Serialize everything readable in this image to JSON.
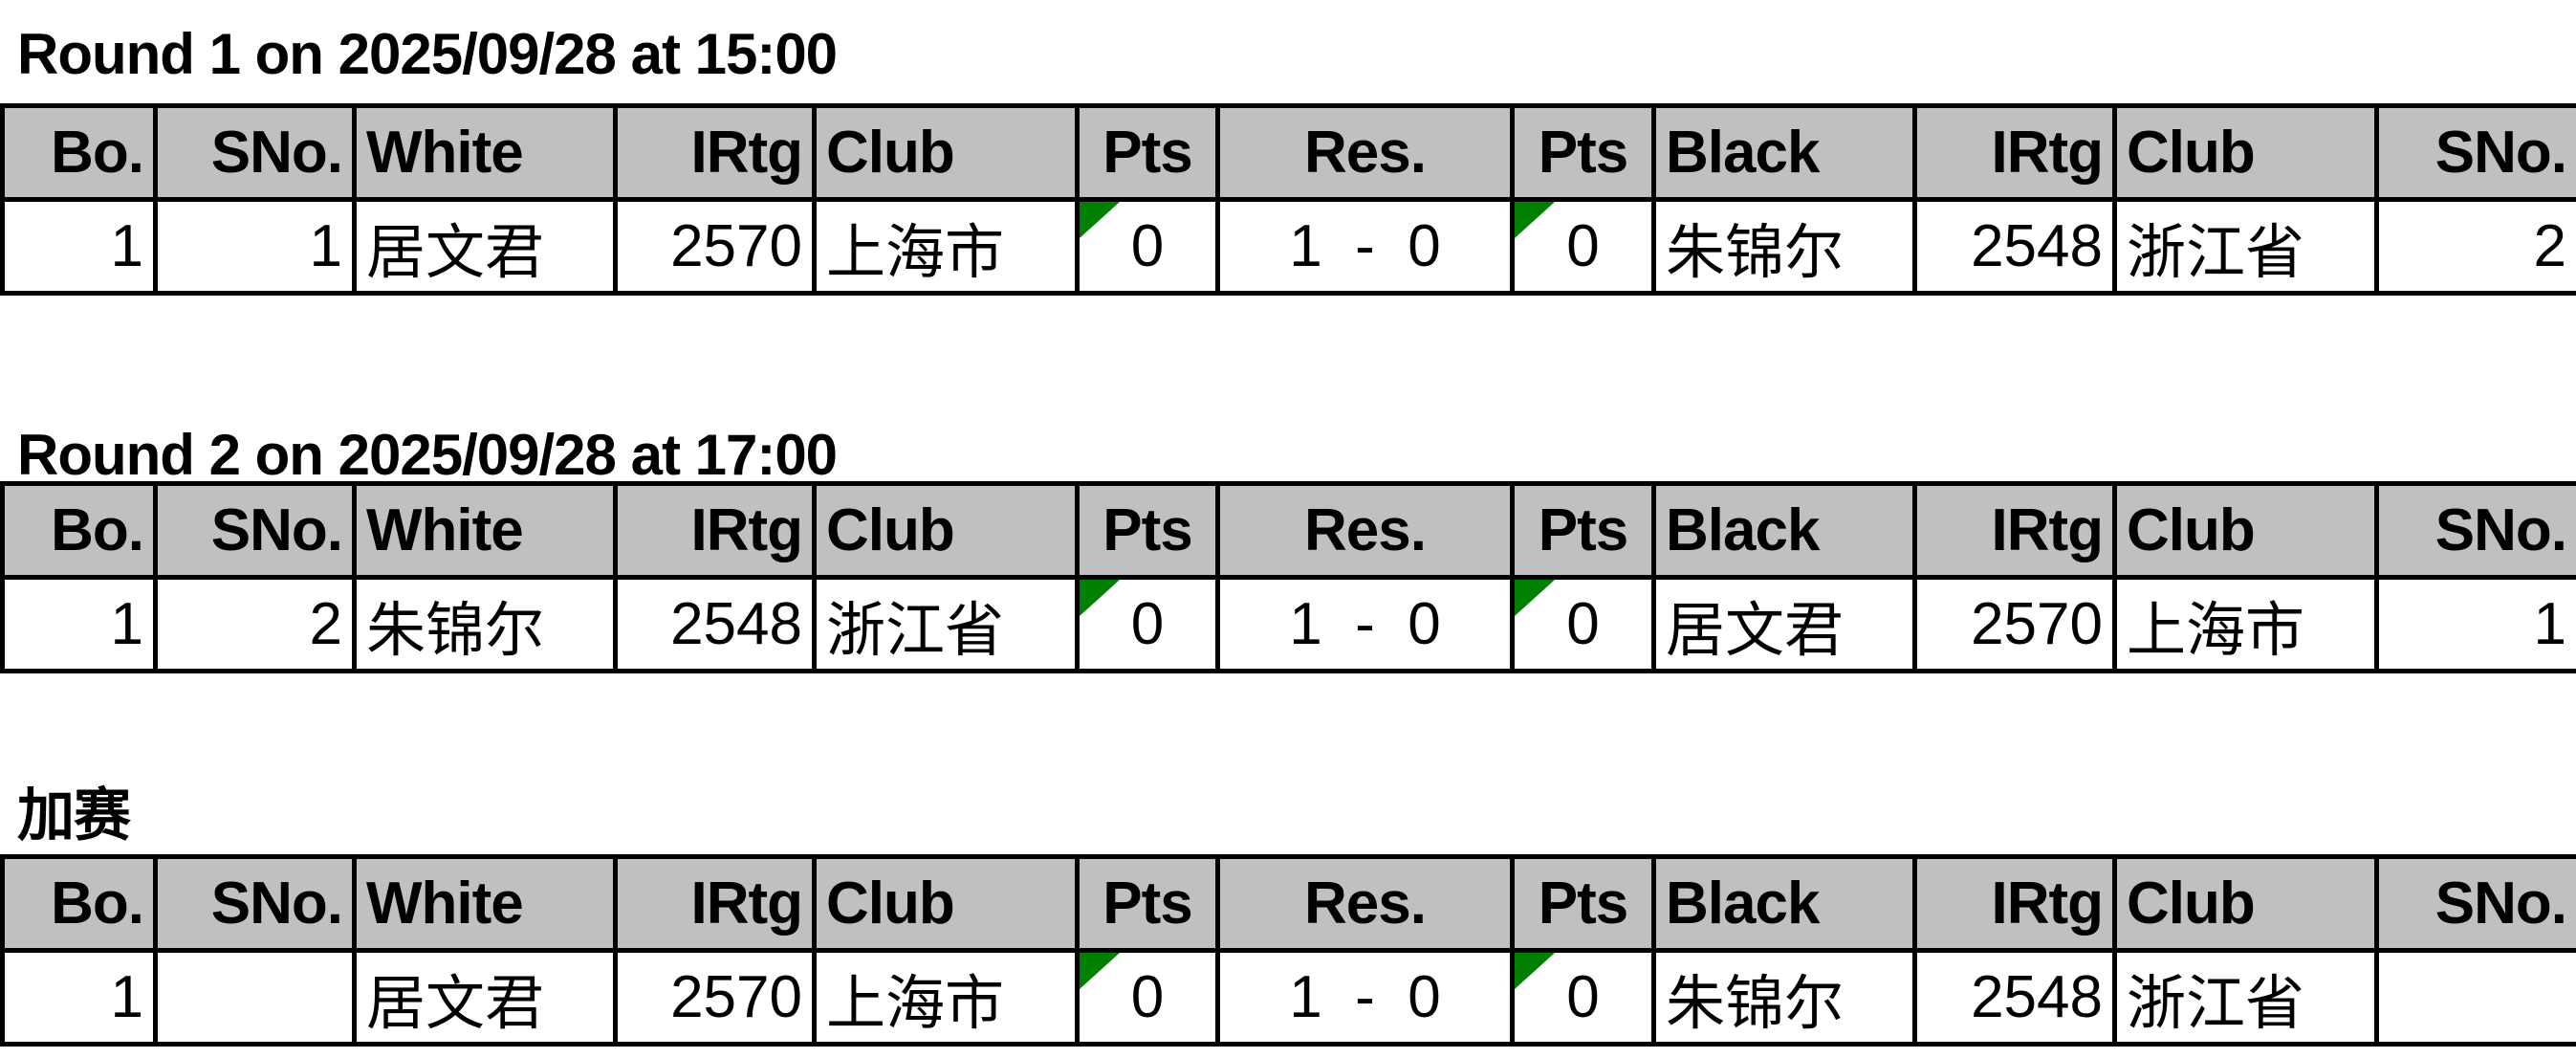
{
  "headers": [
    "Bo.",
    "SNo.",
    "White",
    "IRtg",
    "Club",
    "Pts",
    "Res.",
    "Pts",
    "Black",
    "IRtg",
    "Club",
    "SNo."
  ],
  "marker_color": "#008000",
  "header_bg": "#c0c0c0",
  "rounds": [
    {
      "title": "Round 1 on 2025/09/28 at 15:00",
      "rows": [
        {
          "board": "1",
          "white_sno": "1",
          "white": "居文君",
          "white_rtg": "2570",
          "white_club": "上海市",
          "white_pts": "0",
          "result": "1  -  0",
          "black_pts": "0",
          "black": "朱锦尔",
          "black_rtg": "2548",
          "black_club": "浙江省",
          "black_sno": "2"
        }
      ]
    },
    {
      "title": "Round 2 on 2025/09/28 at 17:00",
      "rows": [
        {
          "board": "1",
          "white_sno": "2",
          "white": "朱锦尔",
          "white_rtg": "2548",
          "white_club": "浙江省",
          "white_pts": "0",
          "result": "1  -  0",
          "black_pts": "0",
          "black": "居文君",
          "black_rtg": "2570",
          "black_club": "上海市",
          "black_sno": "1"
        }
      ]
    },
    {
      "title": "加赛",
      "rows": [
        {
          "board": "1",
          "white_sno": "",
          "white": "居文君",
          "white_rtg": "2570",
          "white_club": "上海市",
          "white_pts": "0",
          "result": "1  -  0",
          "black_pts": "0",
          "black": "朱锦尔",
          "black_rtg": "2548",
          "black_club": "浙江省",
          "black_sno": ""
        }
      ]
    }
  ]
}
